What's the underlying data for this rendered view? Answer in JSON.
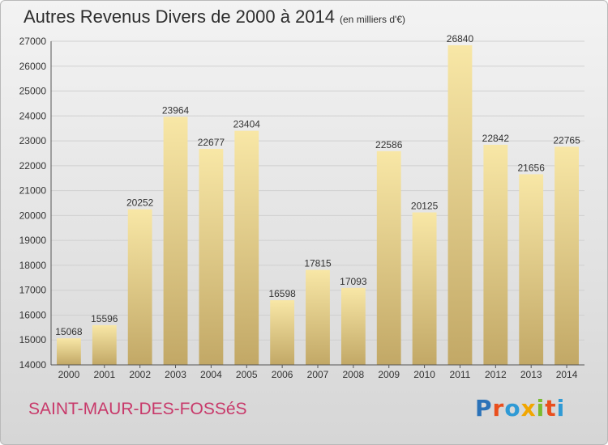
{
  "title": "Autres Revenus Divers de 2000 à 2014",
  "unit": "(en milliers d'€)",
  "city": "SAINT-MAUR-DES-FOSSéS",
  "logo": {
    "text": "Proxiti",
    "colors": [
      "#2b72b8",
      "#e94f1d",
      "#2f9ad5",
      "#f1a600",
      "#7bbb2e",
      "#e94f1d",
      "#2f9ad5"
    ]
  },
  "colors": {
    "bar_light": "#f8e7a6",
    "bar_dark": "#c2a866",
    "grid": "#d0d0d0",
    "city": "#c8396a"
  },
  "chart_data": {
    "type": "bar",
    "categories": [
      "2000",
      "2001",
      "2002",
      "2003",
      "2004",
      "2005",
      "2006",
      "2007",
      "2008",
      "2009",
      "2010",
      "2011",
      "2012",
      "2013",
      "2014"
    ],
    "values": [
      15068,
      15596,
      20252,
      23964,
      22677,
      23404,
      16598,
      17815,
      17093,
      22586,
      20125,
      26840,
      22842,
      21656,
      22765
    ],
    "ylim": [
      14000,
      27000
    ],
    "yticks": [
      14000,
      15000,
      16000,
      17000,
      18000,
      19000,
      20000,
      21000,
      22000,
      23000,
      24000,
      25000,
      26000,
      27000
    ],
    "grid": true,
    "xlabel": "",
    "ylabel": ""
  }
}
